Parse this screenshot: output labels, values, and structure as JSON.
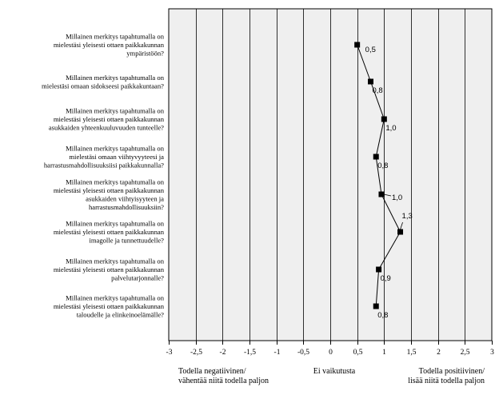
{
  "chart_data": {
    "type": "line",
    "orientation": "horizontal",
    "categories": [
      [
        "Millainen merkitys tapahtumalla on",
        "mielestäsi yleisesti ottaen paikkakunnan",
        "ympäristöön?"
      ],
      [
        "Millainen merkitys tapahtumalla on",
        "mielestäsi omaan sidokseesi paikkakuntaan?"
      ],
      [
        "Millainen merkitys tapahtumalla on",
        "mielestäsi yleisesti ottaen paikkakunnan",
        "asukkaiden yhteenkuuluvuuden tunteelle?"
      ],
      [
        "Millainen merkitys tapahtumalla on",
        "mielestäsi omaan viihtyvyyteesi ja",
        "harrastusmahdollisuuksiisi paikkakunnalla?"
      ],
      [
        "Millainen merkitys tapahtumalla on",
        "mielestäsi yleisesti ottaen paikkakunnan",
        "asukkaiden viihtyisyyteen ja",
        "harrastusmahdollisuuksiin?"
      ],
      [
        "Millainen merkitys tapahtumalla on",
        "mielestäsi yleisesti ottaen paikkakunnan",
        "imagolle ja tunnettuudelle?"
      ],
      [
        "Millainen merkitys tapahtumalla on",
        "mielestäsi yleisesti ottaen paikkakunnan",
        "palvelutarjonnalle?"
      ],
      [
        "Millainen merkitys tapahtumalla on",
        "mielestäsi yleisesti ottaen paikkakunnan",
        "taloudelle ja elinkeinoelämälle?"
      ]
    ],
    "values": [
      0.5,
      0.75,
      1.0,
      0.85,
      0.95,
      1.3,
      0.9,
      0.85
    ],
    "value_labels": [
      "0,5",
      "0,8",
      "1,0",
      "0,8",
      "1,0",
      "1,3",
      "0,9",
      "0,8"
    ],
    "xlim": [
      -3,
      3
    ],
    "x_ticks": [
      "-3",
      "-2,5",
      "-2",
      "-1,5",
      "-1",
      "-0,5",
      "0",
      "0,5",
      "1",
      "1,5",
      "2",
      "2,5",
      "3"
    ],
    "grid": true,
    "annotations": {
      "left": [
        "Todella negatiivinen/",
        "vähentää niitä todella paljon"
      ],
      "center": [
        "Ei vaikutusta"
      ],
      "right": [
        "Todella positiivinen/",
        "lisää niitä todella paljon"
      ]
    },
    "colors": {
      "plot_bg": "#efefef",
      "grid": "#000000",
      "marker": "#000000",
      "line": "#000000"
    }
  }
}
